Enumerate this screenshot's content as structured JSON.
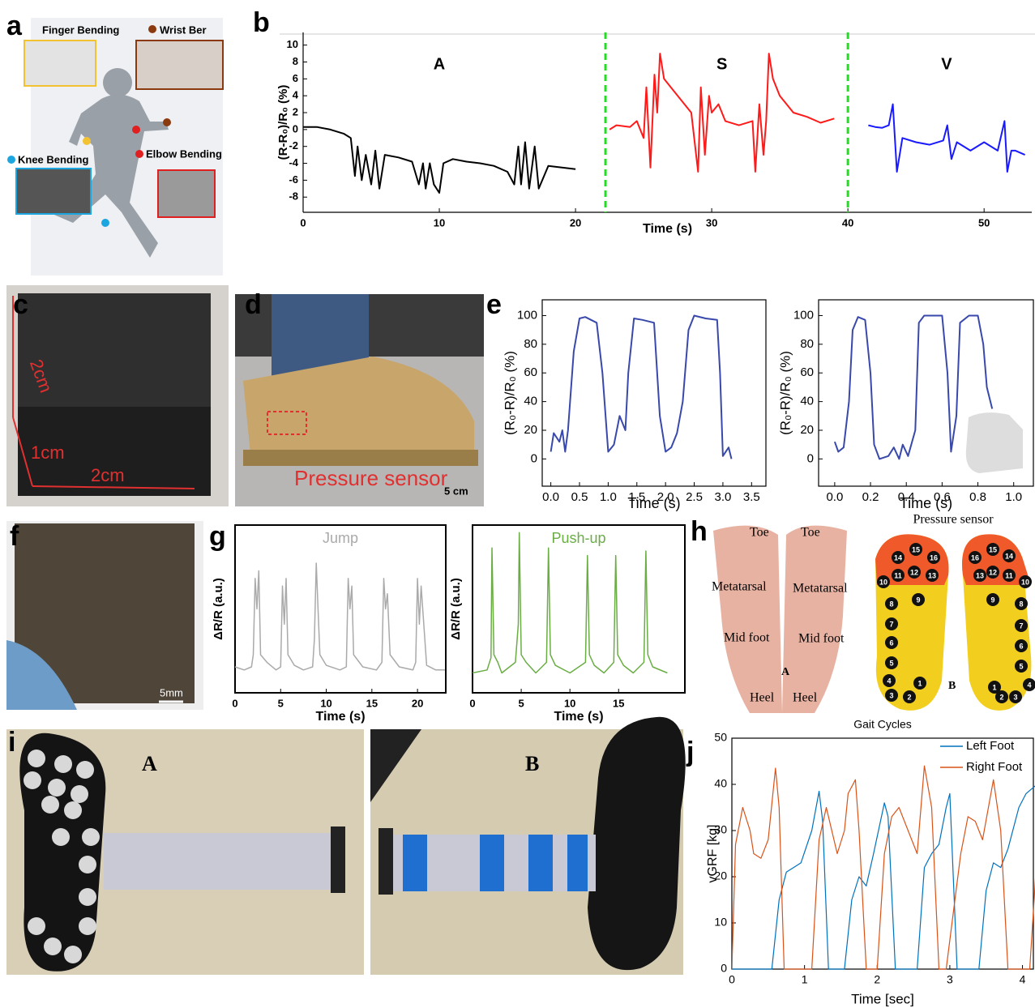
{
  "panels": {
    "labels": [
      "a",
      "b",
      "c",
      "d",
      "e",
      "f",
      "g",
      "h",
      "i",
      "j"
    ]
  },
  "panel_a": {
    "labels": [
      "Finger Bending",
      "Wrist Ber",
      "Knee Bending",
      "Elbow Bending"
    ]
  },
  "panel_c": {
    "labels": [
      "2cm",
      "1cm",
      "2cm"
    ]
  },
  "panel_d": {
    "labels": [
      "Pressure sensor",
      "5 cm"
    ]
  },
  "panel_f": {
    "labels": [
      "5mm"
    ]
  },
  "panel_h": {
    "title": "Pressure sensor",
    "labels": [
      "Toe",
      "Toe",
      "Metatarsal",
      "Metatarsal",
      "Mid foot",
      "Mid foot",
      "Heel",
      "Heel",
      "A",
      "B"
    ],
    "sensors": [
      1,
      2,
      3,
      4,
      5,
      6,
      7,
      8,
      9,
      10,
      11,
      12,
      13,
      14,
      15,
      16
    ]
  },
  "panel_i": {
    "labels": [
      "A",
      "B"
    ]
  },
  "chart_data": [
    {
      "type": "line",
      "ylabel": "(R-R₀)/R₀ (%)",
      "xlabel": "Time (s)",
      "xlim": [
        0,
        53.5
      ],
      "xticks": [
        0,
        10,
        20,
        30,
        40,
        50
      ],
      "ylim": [
        -9.8,
        11.5
      ],
      "yticks": [
        -8,
        -6,
        -4,
        -2,
        0,
        2,
        4,
        6,
        8,
        10
      ],
      "dividers": [
        22.2,
        40
      ],
      "divider_color": "#22dd22",
      "series": [
        {
          "name": "A",
          "color": "#000000",
          "x": [
            0,
            1,
            2,
            3,
            3.5,
            3.8,
            4,
            4.3,
            4.6,
            5,
            5.3,
            5.6,
            6,
            7,
            8,
            8.5,
            8.8,
            9,
            9.3,
            9.6,
            10,
            10.3,
            11,
            12,
            13,
            14,
            15,
            15.5,
            15.8,
            16,
            16.3,
            16.6,
            17,
            17.3,
            18,
            19,
            20
          ],
          "values": [
            0.3,
            0.3,
            0,
            -0.5,
            -1,
            -5.5,
            -2,
            -6,
            -3,
            -6.5,
            -2.5,
            -7,
            -3,
            -3.3,
            -3.8,
            -6.5,
            -4,
            -7,
            -4,
            -6.5,
            -7.5,
            -4,
            -3.5,
            -3.8,
            -4,
            -4.3,
            -5,
            -6.5,
            -2,
            -6.5,
            -1.5,
            -7,
            -2,
            -7,
            -4.3,
            -4.5,
            -4.7
          ]
        },
        {
          "name": "S",
          "color": "#ff1a1a",
          "x": [
            22.5,
            23,
            24,
            24.5,
            25,
            25.2,
            25.5,
            25.8,
            26,
            26.2,
            26.5,
            27,
            28,
            28.5,
            29,
            29.2,
            29.5,
            29.8,
            30,
            30.5,
            31,
            32,
            33,
            33.2,
            33.5,
            33.8,
            34,
            34.2,
            34.5,
            35,
            36,
            37,
            38,
            39
          ],
          "values": [
            0,
            0.5,
            0.3,
            1,
            -1,
            5,
            -4.5,
            6.5,
            2,
            9,
            6,
            5,
            3,
            2,
            -5,
            5,
            -3,
            4,
            2,
            3,
            1,
            0.5,
            1,
            -5,
            3,
            -3,
            1,
            9,
            6,
            4,
            2,
            1.5,
            0.8,
            1.3
          ]
        },
        {
          "name": "V",
          "color": "#1a1aff",
          "x": [
            41.5,
            42,
            42.5,
            43,
            43.3,
            43.6,
            44,
            45,
            46,
            47,
            47.3,
            47.6,
            48,
            49,
            50,
            51,
            51.5,
            51.7,
            52,
            52.3,
            53
          ],
          "values": [
            0.5,
            0.3,
            0.2,
            0.5,
            3,
            -5,
            -1,
            -1.5,
            -1.8,
            -1.3,
            0.5,
            -3.5,
            -1.5,
            -2.5,
            -1.5,
            -2.5,
            1,
            -5,
            -2.5,
            -2.5,
            -3
          ]
        }
      ]
    },
    {
      "type": "line",
      "ylabel": "(R₀-R)/R₀ (%)",
      "xlabel": "Time (s)",
      "xlim": [
        -0.15,
        3.75
      ],
      "xticks": [
        {
          "value": 0,
          "label": "0.0"
        },
        0.5,
        {
          "value": 1,
          "label": "1.0"
        },
        1.5,
        {
          "value": 2,
          "label": "2.0"
        },
        2.5,
        {
          "value": 3,
          "label": "3.0"
        },
        3.5
      ],
      "ylim": [
        -19,
        111
      ],
      "yticks": [
        0,
        20,
        40,
        60,
        80,
        100
      ],
      "color": "#3949ab",
      "x": [
        0,
        0.05,
        0.15,
        0.2,
        0.25,
        0.3,
        0.4,
        0.5,
        0.6,
        0.8,
        0.9,
        1.0,
        1.1,
        1.2,
        1.3,
        1.35,
        1.45,
        1.6,
        1.8,
        1.9,
        2.0,
        2.1,
        2.2,
        2.3,
        2.4,
        2.5,
        2.7,
        2.9,
        2.95,
        3.0,
        3.1,
        3.15
      ],
      "values": [
        5,
        18,
        12,
        20,
        5,
        20,
        75,
        98,
        99,
        95,
        60,
        5,
        10,
        30,
        20,
        60,
        98,
        97,
        95,
        30,
        5,
        8,
        18,
        40,
        90,
        100,
        98,
        97,
        60,
        2,
        8,
        0
      ]
    },
    {
      "type": "line",
      "ylabel": "(R₀-R)/R₀ (%)",
      "xlabel": "Time (s)",
      "xlim": [
        -0.09,
        1.11
      ],
      "xticks": [
        {
          "value": 0,
          "label": "0.0"
        },
        0.2,
        0.4,
        0.6,
        0.8,
        {
          "value": 1,
          "label": "1.0"
        }
      ],
      "ylim": [
        -19,
        111
      ],
      "yticks": [
        0,
        20,
        40,
        60,
        80,
        100
      ],
      "color": "#3949ab",
      "x": [
        0,
        0.02,
        0.05,
        0.08,
        0.1,
        0.13,
        0.17,
        0.2,
        0.22,
        0.25,
        0.3,
        0.33,
        0.36,
        0.38,
        0.41,
        0.45,
        0.47,
        0.5,
        0.6,
        0.63,
        0.65,
        0.68,
        0.7,
        0.75,
        0.8,
        0.83,
        0.85,
        0.88
      ],
      "values": [
        12,
        5,
        8,
        40,
        90,
        99,
        97,
        60,
        10,
        0,
        2,
        8,
        0,
        10,
        2,
        20,
        95,
        100,
        100,
        60,
        5,
        30,
        95,
        100,
        100,
        80,
        50,
        35
      ]
    },
    {
      "type": "line",
      "title": "Jump",
      "ylabel": "ΔR/R (a.u.)",
      "xlabel": "Time (s)",
      "xlim": [
        0,
        23.1
      ],
      "xticks": [
        0,
        5,
        10,
        15,
        20
      ],
      "ylim": [
        -0.5,
        10.5
      ],
      "color": "#aaaaaa",
      "x": [
        0,
        1,
        1.8,
        2.0,
        2.2,
        2.4,
        2.6,
        2.8,
        3.5,
        4.5,
        5.0,
        5.2,
        5.4,
        5.6,
        5.8,
        6.5,
        7.5,
        8.5,
        8.7,
        8.9,
        9.1,
        9.3,
        10,
        11.5,
        12.2,
        12.4,
        12.6,
        12.8,
        13,
        14,
        15.5,
        16.1,
        16.3,
        16.5,
        16.7,
        17,
        18,
        19.5,
        19.8,
        20,
        20.2,
        20.4,
        21,
        22,
        23
      ],
      "values": [
        1.2,
        1,
        1.2,
        2,
        7,
        5,
        7.5,
        2,
        1.5,
        1,
        1.2,
        6.5,
        4,
        7,
        2,
        1.3,
        1,
        1.2,
        3,
        8,
        5,
        2,
        1.3,
        1,
        1.2,
        7,
        5,
        6.5,
        2,
        1.2,
        1,
        1.5,
        7,
        5,
        6,
        2,
        1.2,
        1,
        1.5,
        7,
        4,
        6.5,
        1.3,
        1,
        1
      ]
    },
    {
      "type": "line",
      "title": "Push-up",
      "ylabel": "ΔR/R (a.u.)",
      "xlabel": "Time (s)",
      "xlim": [
        0,
        21.8
      ],
      "xticks": [
        0,
        5,
        10,
        15
      ],
      "ylim": [
        -0.5,
        10.5
      ],
      "color": "#6aad45",
      "x": [
        0,
        1.5,
        1.9,
        2.0,
        2.2,
        2.6,
        3,
        4.4,
        4.7,
        4.8,
        5.0,
        5.5,
        6.5,
        7.6,
        7.8,
        8.0,
        8.5,
        10,
        11.6,
        11.8,
        12.0,
        12.5,
        13.5,
        14.5,
        14.7,
        14.9,
        15.5,
        16.5,
        17.6,
        17.8,
        18.0,
        18.5,
        20
      ],
      "values": [
        0.8,
        1,
        1.8,
        9,
        2,
        1.5,
        0.8,
        1.5,
        4,
        10,
        2,
        1.5,
        0.8,
        1.5,
        9,
        2,
        1.3,
        0.8,
        1.5,
        8.5,
        2,
        1.3,
        0.8,
        1.5,
        8.5,
        2,
        1.3,
        0.8,
        1.5,
        8.8,
        2,
        1.2,
        0.8
      ]
    },
    {
      "type": "line",
      "title": "Gait Cycles",
      "xlabel": "Time [sec]",
      "ylabel": "vGRF [kg]",
      "xlim": [
        0,
        4.15
      ],
      "xticks": [
        0,
        1,
        2,
        3,
        4
      ],
      "ylim": [
        0,
        50
      ],
      "yticks": [
        0,
        10,
        20,
        30,
        40,
        50
      ],
      "legend": "upper right",
      "series": [
        {
          "name": "Left Foot",
          "color": "#0072bd",
          "x": [
            0,
            0.55,
            0.65,
            0.75,
            0.85,
            0.95,
            1.1,
            1.2,
            1.25,
            1.33,
            1.55,
            1.65,
            1.75,
            1.85,
            1.95,
            2.1,
            2.15,
            2.25,
            2.55,
            2.65,
            2.75,
            2.85,
            2.95,
            3.0,
            3.1,
            3.4,
            3.5,
            3.6,
            3.7,
            3.8,
            3.95,
            4.05,
            4.2
          ],
          "values": [
            0,
            0,
            15,
            21,
            22,
            23,
            30,
            38.5,
            32,
            0,
            0,
            15,
            20,
            18,
            25,
            36,
            33,
            0,
            0,
            22,
            25,
            27,
            35,
            38,
            0,
            0,
            17,
            23,
            22,
            26,
            35,
            38,
            40
          ]
        },
        {
          "name": "Right Foot",
          "color": "#d95319",
          "x": [
            0,
            0.05,
            0.15,
            0.25,
            0.3,
            0.4,
            0.5,
            0.6,
            0.65,
            0.72,
            1.1,
            1.2,
            1.3,
            1.45,
            1.55,
            1.6,
            1.7,
            1.75,
            1.85,
            2.0,
            2.1,
            2.2,
            2.3,
            2.55,
            2.65,
            2.75,
            2.85,
            2.95,
            3.15,
            3.25,
            3.35,
            3.45,
            3.6,
            3.7,
            3.8,
            4.1,
            4.2
          ],
          "values": [
            0,
            27,
            35,
            30,
            25,
            24,
            28,
            43.5,
            35,
            0,
            0,
            28,
            35,
            25,
            30,
            38,
            41,
            30,
            0,
            0,
            25,
            33,
            35,
            25,
            44,
            35,
            0,
            0,
            25,
            33,
            32,
            28,
            41,
            30,
            0,
            0,
            25
          ]
        }
      ]
    }
  ]
}
